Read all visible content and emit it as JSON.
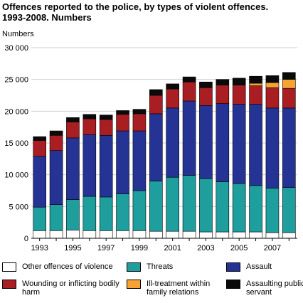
{
  "title_line1": "Offences reported to the police, by types of violent offences.",
  "title_line2": "1993-2008. Numbers",
  "chart_data": {
    "type": "bar",
    "stacked": true,
    "ylabel": "Numbers",
    "ylim": [
      0,
      30000
    ],
    "yticks": [
      0,
      5000,
      10000,
      15000,
      20000,
      25000,
      30000
    ],
    "ytick_labels": [
      "0",
      "5 000",
      "10 000",
      "15 000",
      "20 000",
      "25 000",
      "30 000"
    ],
    "categories": [
      "1993",
      "1994",
      "1995",
      "1996",
      "1997",
      "1998",
      "1999",
      "2000",
      "2001",
      "2002",
      "2003",
      "2004",
      "2005",
      "2006",
      "2007",
      "2008"
    ],
    "xtick_labels": [
      "1993",
      "1995",
      "1997",
      "1999",
      "2001",
      "2003",
      "2005",
      "2007"
    ],
    "grid": true,
    "legend_position": "bottom",
    "series": [
      {
        "name": "Other offences of violence",
        "color": "#ffffff",
        "values": [
          1200,
          1200,
          1300,
          1200,
          1200,
          1200,
          1200,
          1100,
          1100,
          1100,
          1000,
          1000,
          1000,
          1000,
          900,
          900
        ]
      },
      {
        "name": "Threats",
        "color": "#1f9e9e",
        "values": [
          3700,
          4100,
          4800,
          5400,
          5300,
          5800,
          6300,
          7900,
          8500,
          8800,
          8400,
          7900,
          7600,
          7300,
          7000,
          7100
        ]
      },
      {
        "name": "Assault",
        "color": "#253494",
        "values": [
          8000,
          8500,
          9700,
          9700,
          9700,
          9900,
          9400,
          10600,
          10900,
          11700,
          11500,
          12300,
          12500,
          12800,
          12600,
          12500
        ]
      },
      {
        "name": "Wounding or inflicting bodily harm",
        "color": "#a81e23",
        "values": [
          2500,
          2400,
          2500,
          2500,
          2500,
          2600,
          2700,
          2900,
          3000,
          3000,
          2800,
          2900,
          3000,
          2900,
          3200,
          3100
        ]
      },
      {
        "name": "Ill-treatment within family relations",
        "color": "#f7a233",
        "values": [
          0,
          0,
          0,
          0,
          0,
          0,
          0,
          0,
          0,
          0,
          0,
          0,
          0,
          400,
          800,
          1400
        ]
      },
      {
        "name": "Assaulting public servant",
        "color": "#0a0a0a",
        "values": [
          600,
          700,
          700,
          700,
          700,
          600,
          700,
          900,
          800,
          800,
          900,
          900,
          1100,
          1100,
          1100,
          1100
        ]
      }
    ]
  }
}
